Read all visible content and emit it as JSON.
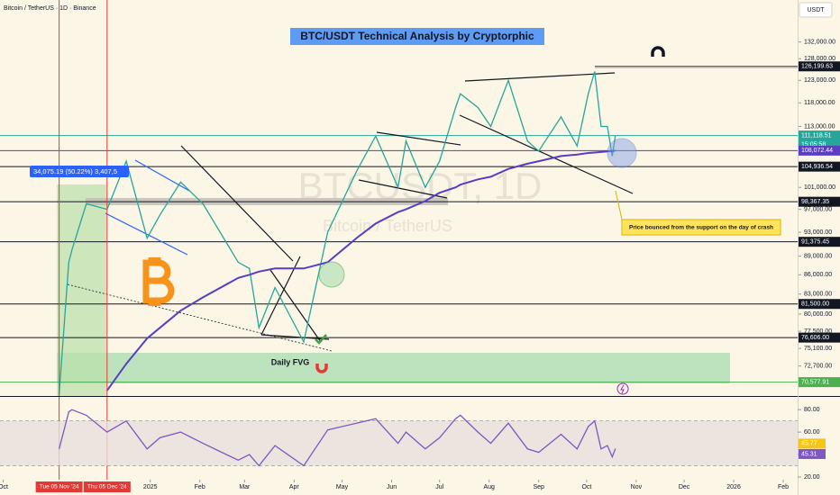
{
  "header": {
    "symbol": "Bitcoin / TetherUS · 1D · Binance",
    "currency": "USDT"
  },
  "chart_data": [
    {
      "type": "line",
      "title": "BTC/USDT Technical Analysis by Cryptorphic",
      "watermark": "BTCUSDT, 1D",
      "watermark_sub": "Bitcoin / TetherUS",
      "log_scale": true,
      "x": [
        "2024-11-05",
        "2024-11-11",
        "2024-11-13",
        "2024-11-22",
        "2024-12-05",
        "2024-12-17",
        "2024-12-30",
        "2025-01-07",
        "2025-01-20",
        "2025-02-03",
        "2025-02-25",
        "2025-03-04",
        "2025-03-10",
        "2025-03-20",
        "2025-04-07",
        "2025-04-22",
        "2025-05-10",
        "2025-05-22",
        "2025-06-05",
        "2025-06-10",
        "2025-06-22",
        "2025-07-01",
        "2025-07-11",
        "2025-07-14",
        "2025-07-25",
        "2025-08-02",
        "2025-08-13",
        "2025-08-25",
        "2025-09-01",
        "2025-09-15",
        "2025-09-25",
        "2025-10-02",
        "2025-10-06",
        "2025-10-10",
        "2025-10-14",
        "2025-10-17",
        "2025-10-19"
      ],
      "series": [
        {
          "color": "#26a69a",
          "values": [
            69000,
            88000,
            90000,
            98000,
            97000,
            106000,
            92000,
            96000,
            102000,
            98000,
            88000,
            87000,
            78000,
            84000,
            76000,
            93000,
            104000,
            111000,
            101000,
            110000,
            101000,
            106000,
            117000,
            120000,
            117000,
            113000,
            123000,
            110000,
            108000,
            115000,
            109000,
            120000,
            125000,
            113000,
            113000,
            107000,
            111118.51
          ]
        },
        {
          "color": "#5b3cc4",
          "values": [
            null,
            null,
            null,
            null,
            69500,
            73000,
            76500,
            78000,
            80500,
            82500,
            85500,
            86000,
            86500,
            87000,
            87000,
            88000,
            92000,
            94500,
            96500,
            97000,
            98500,
            100000,
            101000,
            101500,
            102500,
            103000,
            104500,
            105500,
            106000,
            107000,
            107300,
            107600,
            107700,
            107800,
            107900,
            108000,
            108072.44
          ]
        }
      ],
      "ylim": [
        68800,
        142600
      ],
      "yticks": [
        {
          "value": 132000,
          "label": "132,000.00"
        },
        {
          "value": 128000,
          "label": "128,000.00"
        },
        {
          "value": 123000,
          "label": "123,000.00"
        },
        {
          "value": 118000,
          "label": "118,000.00"
        },
        {
          "value": 113000,
          "label": "113,000.00"
        },
        {
          "value": 101000,
          "label": "101,000.00"
        },
        {
          "value": 97000,
          "label": "97,000.00"
        },
        {
          "value": 93000,
          "label": "93,000.00"
        },
        {
          "value": 89000,
          "label": "89,000.00"
        },
        {
          "value": 86000,
          "label": "86,000.00"
        },
        {
          "value": 83000,
          "label": "83,000.00"
        },
        {
          "value": 80000,
          "label": "80,000.00"
        },
        {
          "value": 77500,
          "label": "77,500.00"
        },
        {
          "value": 75100,
          "label": "75,100.00"
        },
        {
          "value": 72700,
          "label": "72,700.00"
        }
      ],
      "xlim": [
        "2024-09-29",
        "2026-02-10"
      ],
      "xticks": [
        {
          "value": "2024-10-01",
          "label": "Oct"
        },
        {
          "value": "2025-01-01",
          "label": "2025"
        },
        {
          "value": "2025-02-01",
          "label": "Feb"
        },
        {
          "value": "2025-03-01",
          "label": "Mar"
        },
        {
          "value": "2025-04-01",
          "label": "Apr"
        },
        {
          "value": "2025-05-01",
          "label": "May"
        },
        {
          "value": "2025-06-01",
          "label": "Jun"
        },
        {
          "value": "2025-07-01",
          "label": "Jul"
        },
        {
          "value": "2025-08-01",
          "label": "Aug"
        },
        {
          "value": "2025-09-01",
          "label": "Sep"
        },
        {
          "value": "2025-10-01",
          "label": "Oct"
        },
        {
          "value": "2025-11-01",
          "label": "Nov"
        },
        {
          "value": "2025-12-01",
          "label": "Dec"
        },
        {
          "value": "2026-01-01",
          "label": "2026"
        },
        {
          "value": "2026-02-01",
          "label": "Feb"
        }
      ],
      "levels": [
        {
          "value": 126199.63,
          "label": "126,199.63",
          "color": "#131722"
        },
        {
          "value": 111118.51,
          "label": "111,118.51",
          "countdown": "15:05:58",
          "color": "#26a69a"
        },
        {
          "value": 108072.44,
          "label": "108,072.44",
          "color": "#5b3cc4"
        },
        {
          "value": 104936.54,
          "label": "104,936.54",
          "color": "#131722"
        },
        {
          "value": 98367.35,
          "label": "98,367.35",
          "color": "#131722"
        },
        {
          "value": 91375.45,
          "label": "91,375.45",
          "color": "#131722"
        },
        {
          "value": 81500,
          "label": "81,500.00",
          "color": "#131722"
        },
        {
          "value": 76606,
          "label": "76,606.00",
          "color": "#131722"
        },
        {
          "value": 70577.91,
          "label": "70,577.91",
          "color": "#4caf50"
        }
      ],
      "markers": [
        {
          "x": "2024-11-05",
          "label": "Tue 05 Nov '24"
        },
        {
          "x": "2024-12-05",
          "label": "Thu 05 Dec '24"
        }
      ],
      "annotations": {
        "measure": "34,075.19 (50.22%) 3,407,5",
        "fvg": "Daily FVG",
        "note": "Price bounced from the support on the day of crash"
      }
    },
    {
      "type": "line",
      "x": [
        "2024-11-05",
        "2024-11-11",
        "2024-11-13",
        "2024-11-22",
        "2024-12-05",
        "2024-12-17",
        "2024-12-30",
        "2025-01-07",
        "2025-01-20",
        "2025-02-03",
        "2025-02-25",
        "2025-03-04",
        "2025-03-10",
        "2025-03-20",
        "2025-04-07",
        "2025-04-22",
        "2025-05-10",
        "2025-05-22",
        "2025-06-05",
        "2025-06-10",
        "2025-06-22",
        "2025-07-01",
        "2025-07-11",
        "2025-07-14",
        "2025-07-25",
        "2025-08-02",
        "2025-08-13",
        "2025-08-25",
        "2025-09-01",
        "2025-09-15",
        "2025-09-25",
        "2025-10-02",
        "2025-10-06",
        "2025-10-10",
        "2025-10-14",
        "2025-10-17",
        "2025-10-19"
      ],
      "series": [
        {
          "color": "#7e57c2",
          "values": [
            45,
            78,
            80,
            75,
            60,
            70,
            45,
            55,
            60,
            50,
            35,
            40,
            30,
            48,
            30,
            62,
            68,
            72,
            50,
            60,
            45,
            55,
            72,
            75,
            60,
            50,
            68,
            45,
            42,
            58,
            45,
            65,
            70,
            45,
            48,
            38,
            45.31
          ]
        }
      ],
      "ylim": [
        17.6,
        91.4
      ],
      "yticks": [
        {
          "value": 80,
          "label": "80.00"
        },
        {
          "value": 60,
          "label": "60.00"
        },
        {
          "value": 40,
          "label": "40.00"
        },
        {
          "value": 20,
          "label": "20.00"
        }
      ],
      "bands": [
        30,
        70
      ],
      "tags": [
        {
          "value": 45.77,
          "label": "45.77",
          "color": "#f5c518"
        },
        {
          "value": 45.31,
          "label": "45.31",
          "color": "#7e57c2"
        }
      ]
    }
  ]
}
